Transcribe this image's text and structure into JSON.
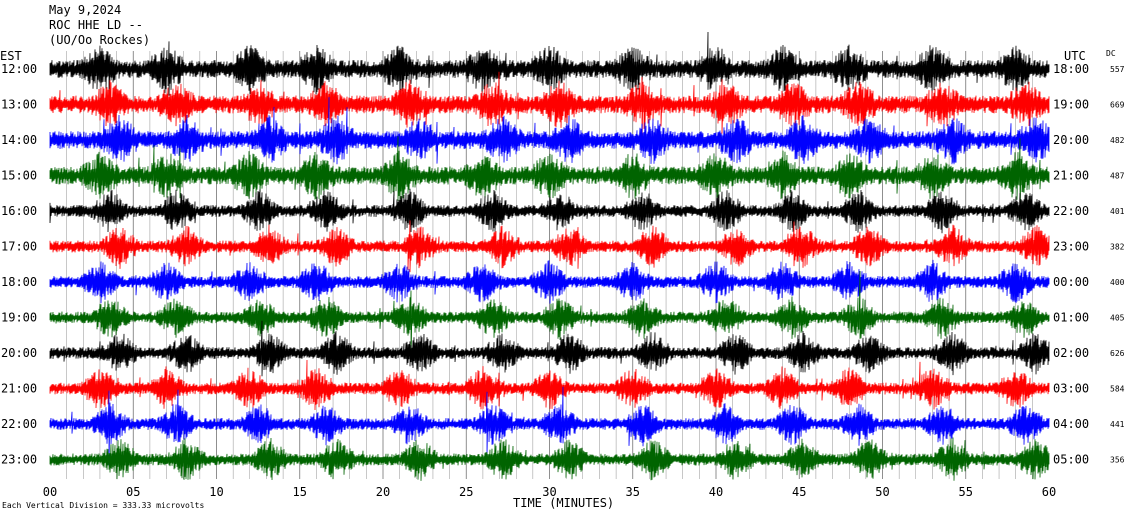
{
  "header": {
    "date": "May 9,2024",
    "station": "ROC HHE LD --",
    "network": "(UO/Oo Rockes)"
  },
  "left_axis_label": "EST",
  "right_axis_label": "UTC",
  "dc_label": "DC",
  "x_axis_title": "TIME (MINUTES)",
  "footer_note": "Each Vertical Division = 333.33 microvolts",
  "colors": {
    "black": "#000000",
    "red": "#ff0000",
    "blue": "#0000ff",
    "green": "#006400"
  },
  "chart_data": {
    "type": "line",
    "xlim": [
      0,
      60
    ],
    "x_ticks": [
      "00",
      "05",
      "10",
      "15",
      "20",
      "25",
      "30",
      "35",
      "40",
      "45",
      "50",
      "55",
      "60"
    ],
    "traces": [
      {
        "est": "12:00",
        "utc": "18:00",
        "dc": "557",
        "color": "black"
      },
      {
        "est": "13:00",
        "utc": "19:00",
        "dc": "669",
        "color": "red"
      },
      {
        "est": "14:00",
        "utc": "20:00",
        "dc": "482",
        "color": "blue"
      },
      {
        "est": "15:00",
        "utc": "21:00",
        "dc": "487",
        "color": "green"
      },
      {
        "est": "16:00",
        "utc": "22:00",
        "dc": "401",
        "color": "black"
      },
      {
        "est": "17:00",
        "utc": "23:00",
        "dc": "382",
        "color": "red"
      },
      {
        "est": "18:00",
        "utc": "00:00",
        "dc": "400",
        "color": "blue"
      },
      {
        "est": "19:00",
        "utc": "01:00",
        "dc": "405",
        "color": "green"
      },
      {
        "est": "20:00",
        "utc": "02:00",
        "dc": "626",
        "color": "black"
      },
      {
        "est": "21:00",
        "utc": "03:00",
        "dc": "584",
        "color": "red"
      },
      {
        "est": "22:00",
        "utc": "04:00",
        "dc": "441",
        "color": "blue"
      },
      {
        "est": "23:00",
        "utc": "05:00",
        "dc": "356",
        "color": "green"
      }
    ]
  }
}
